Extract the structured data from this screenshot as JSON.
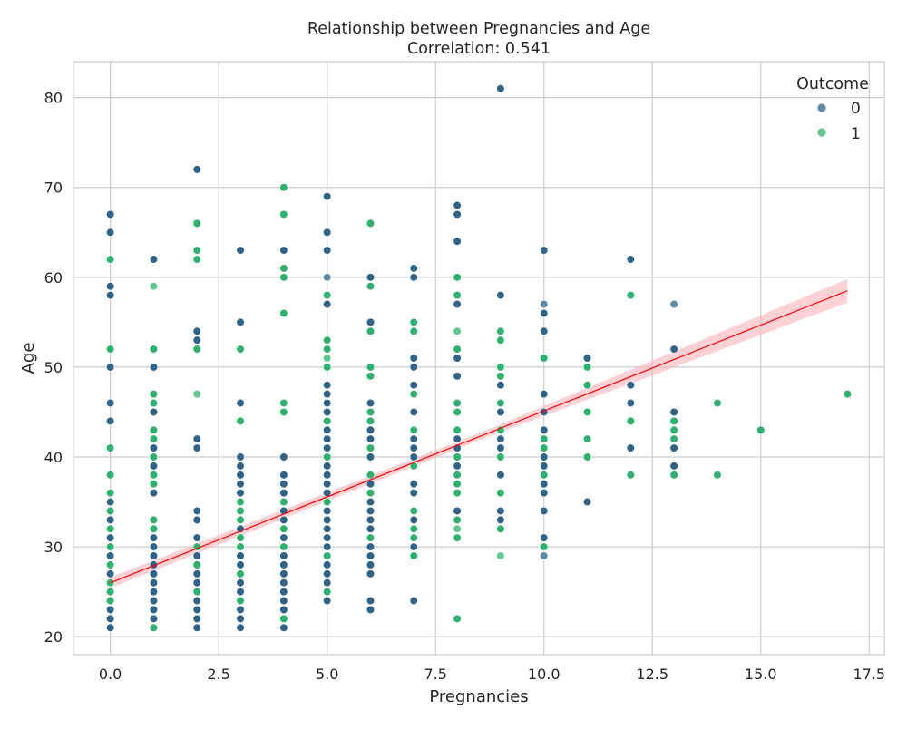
{
  "chart_data": {
    "type": "scatter",
    "title": "Relationship between Pregnancies and Age",
    "subtitle": "Correlation: 0.541",
    "xlabel": "Pregnancies",
    "ylabel": "Age",
    "xlim": [
      -0.85,
      17.85
    ],
    "ylim": [
      18,
      84
    ],
    "xticks": [
      0.0,
      2.5,
      5.0,
      7.5,
      10.0,
      12.5,
      15.0,
      17.5
    ],
    "xtick_labels": [
      "0.0",
      "2.5",
      "5.0",
      "7.5",
      "10.0",
      "12.5",
      "15.0",
      "17.5"
    ],
    "yticks": [
      20,
      30,
      40,
      50,
      60,
      70,
      80
    ],
    "ytick_labels": [
      "20",
      "30",
      "40",
      "50",
      "60",
      "70",
      "80"
    ],
    "grid": true,
    "legend": {
      "title": "Outcome",
      "placement": "top-right",
      "entries": [
        {
          "label": "0",
          "color": "#2f6389"
        },
        {
          "label": "1",
          "color": "#2db26e"
        }
      ]
    },
    "regression": {
      "color": "#ff0000",
      "band_color": "#ffb3b8",
      "start": [
        0,
        26.0
      ],
      "end": [
        17,
        58.5
      ],
      "ci_halfwidth_start": 0.6,
      "ci_halfwidth_mid": 0.4,
      "ci_halfwidth_end": 1.3
    },
    "series": [
      {
        "name": "0",
        "color": "#2f6389",
        "points": [
          [
            0,
            21
          ],
          [
            0,
            22
          ],
          [
            0,
            23
          ],
          [
            0,
            25
          ],
          [
            0,
            26
          ],
          [
            0,
            27
          ],
          [
            0,
            29
          ],
          [
            0,
            31
          ],
          [
            0,
            33
          ],
          [
            0,
            35
          ],
          [
            0,
            44
          ],
          [
            0,
            46
          ],
          [
            0,
            50
          ],
          [
            0,
            58
          ],
          [
            0,
            59
          ],
          [
            0,
            65
          ],
          [
            0,
            67
          ],
          [
            1,
            21
          ],
          [
            1,
            22
          ],
          [
            1,
            23
          ],
          [
            1,
            24
          ],
          [
            1,
            25
          ],
          [
            1,
            26
          ],
          [
            1,
            27
          ],
          [
            1,
            28
          ],
          [
            1,
            29
          ],
          [
            1,
            30
          ],
          [
            1,
            31
          ],
          [
            1,
            32
          ],
          [
            1,
            36
          ],
          [
            1,
            39
          ],
          [
            1,
            41
          ],
          [
            1,
            45
          ],
          [
            1,
            50
          ],
          [
            1,
            62
          ],
          [
            2,
            21
          ],
          [
            2,
            22
          ],
          [
            2,
            23
          ],
          [
            2,
            24
          ],
          [
            2,
            25
          ],
          [
            2,
            26
          ],
          [
            2,
            27
          ],
          [
            2,
            28
          ],
          [
            2,
            29
          ],
          [
            2,
            31
          ],
          [
            2,
            33
          ],
          [
            2,
            34
          ],
          [
            2,
            41
          ],
          [
            2,
            42
          ],
          [
            2,
            53
          ],
          [
            2,
            54
          ],
          [
            2,
            72
          ],
          [
            3,
            21
          ],
          [
            3,
            22
          ],
          [
            3,
            23
          ],
          [
            3,
            25
          ],
          [
            3,
            26
          ],
          [
            3,
            28
          ],
          [
            3,
            29
          ],
          [
            3,
            30
          ],
          [
            3,
            32
          ],
          [
            3,
            36
          ],
          [
            3,
            37
          ],
          [
            3,
            38
          ],
          [
            3,
            39
          ],
          [
            3,
            40
          ],
          [
            3,
            46
          ],
          [
            3,
            55
          ],
          [
            3,
            63
          ],
          [
            4,
            21
          ],
          [
            4,
            22
          ],
          [
            4,
            23
          ],
          [
            4,
            24
          ],
          [
            4,
            25
          ],
          [
            4,
            26
          ],
          [
            4,
            27
          ],
          [
            4,
            28
          ],
          [
            4,
            29
          ],
          [
            4,
            30
          ],
          [
            4,
            31
          ],
          [
            4,
            33
          ],
          [
            4,
            34
          ],
          [
            4,
            36
          ],
          [
            4,
            37
          ],
          [
            4,
            38
          ],
          [
            4,
            40
          ],
          [
            4,
            63
          ],
          [
            5,
            24
          ],
          [
            5,
            26
          ],
          [
            5,
            27
          ],
          [
            5,
            28
          ],
          [
            5,
            30
          ],
          [
            5,
            31
          ],
          [
            5,
            32
          ],
          [
            5,
            33
          ],
          [
            5,
            34
          ],
          [
            5,
            36
          ],
          [
            5,
            37
          ],
          [
            5,
            38
          ],
          [
            5,
            39
          ],
          [
            5,
            41
          ],
          [
            5,
            42
          ],
          [
            5,
            43
          ],
          [
            5,
            45
          ],
          [
            5,
            46
          ],
          [
            5,
            47
          ],
          [
            5,
            48
          ],
          [
            5,
            57
          ],
          [
            5,
            63
          ],
          [
            5,
            65
          ],
          [
            5,
            69
          ],
          [
            6,
            23
          ],
          [
            6,
            24
          ],
          [
            6,
            27
          ],
          [
            6,
            28
          ],
          [
            6,
            29
          ],
          [
            6,
            30
          ],
          [
            6,
            32
          ],
          [
            6,
            33
          ],
          [
            6,
            34
          ],
          [
            6,
            35
          ],
          [
            6,
            36
          ],
          [
            6,
            37
          ],
          [
            6,
            40
          ],
          [
            6,
            42
          ],
          [
            6,
            43
          ],
          [
            6,
            46
          ],
          [
            6,
            55
          ],
          [
            6,
            60
          ],
          [
            7,
            24
          ],
          [
            7,
            30
          ],
          [
            7,
            33
          ],
          [
            7,
            36
          ],
          [
            7,
            37
          ],
          [
            7,
            39
          ],
          [
            7,
            40
          ],
          [
            7,
            41
          ],
          [
            7,
            42
          ],
          [
            7,
            45
          ],
          [
            7,
            48
          ],
          [
            7,
            50
          ],
          [
            7,
            51
          ],
          [
            7,
            60
          ],
          [
            7,
            61
          ],
          [
            8,
            31
          ],
          [
            8,
            34
          ],
          [
            8,
            39
          ],
          [
            8,
            41
          ],
          [
            8,
            42
          ],
          [
            8,
            49
          ],
          [
            8,
            51
          ],
          [
            8,
            57
          ],
          [
            8,
            64
          ],
          [
            8,
            67
          ],
          [
            8,
            68
          ],
          [
            9,
            33
          ],
          [
            9,
            34
          ],
          [
            9,
            38
          ],
          [
            9,
            41
          ],
          [
            9,
            42
          ],
          [
            9,
            45
          ],
          [
            9,
            48
          ],
          [
            9,
            58
          ],
          [
            9,
            81
          ],
          [
            10,
            31
          ],
          [
            10,
            34
          ],
          [
            10,
            36
          ],
          [
            10,
            37
          ],
          [
            10,
            39
          ],
          [
            10,
            40
          ],
          [
            10,
            43
          ],
          [
            10,
            45
          ],
          [
            10,
            47
          ],
          [
            10,
            54
          ],
          [
            10,
            56
          ],
          [
            10,
            63
          ],
          [
            11,
            35
          ],
          [
            11,
            51
          ],
          [
            12,
            41
          ],
          [
            12,
            46
          ],
          [
            12,
            48
          ],
          [
            12,
            62
          ],
          [
            13,
            39
          ],
          [
            13,
            41
          ],
          [
            13,
            45
          ],
          [
            13,
            52
          ]
        ]
      },
      {
        "name": "1",
        "color": "#2db26e",
        "points": [
          [
            0,
            24
          ],
          [
            0,
            25
          ],
          [
            0,
            26
          ],
          [
            0,
            28
          ],
          [
            0,
            30
          ],
          [
            0,
            32
          ],
          [
            0,
            34
          ],
          [
            0,
            36
          ],
          [
            0,
            38
          ],
          [
            0,
            41
          ],
          [
            0,
            52
          ],
          [
            0,
            62
          ],
          [
            1,
            21
          ],
          [
            1,
            32
          ],
          [
            1,
            33
          ],
          [
            1,
            37
          ],
          [
            1,
            38
          ],
          [
            1,
            40
          ],
          [
            1,
            42
          ],
          [
            1,
            43
          ],
          [
            1,
            46
          ],
          [
            1,
            47
          ],
          [
            1,
            52
          ],
          [
            2,
            25
          ],
          [
            2,
            28
          ],
          [
            2,
            30
          ],
          [
            2,
            52
          ],
          [
            2,
            62
          ],
          [
            2,
            63
          ],
          [
            2,
            66
          ],
          [
            3,
            24
          ],
          [
            3,
            27
          ],
          [
            3,
            30
          ],
          [
            3,
            31
          ],
          [
            3,
            33
          ],
          [
            3,
            34
          ],
          [
            3,
            35
          ],
          [
            3,
            44
          ],
          [
            3,
            52
          ],
          [
            4,
            22
          ],
          [
            4,
            30
          ],
          [
            4,
            32
          ],
          [
            4,
            35
          ],
          [
            4,
            45
          ],
          [
            4,
            46
          ],
          [
            4,
            56
          ],
          [
            4,
            60
          ],
          [
            4,
            61
          ],
          [
            4,
            67
          ],
          [
            4,
            70
          ],
          [
            5,
            25
          ],
          [
            5,
            29
          ],
          [
            5,
            35
          ],
          [
            5,
            40
          ],
          [
            5,
            44
          ],
          [
            5,
            50
          ],
          [
            5,
            52
          ],
          [
            5,
            53
          ],
          [
            5,
            58
          ],
          [
            6,
            31
          ],
          [
            6,
            36
          ],
          [
            6,
            38
          ],
          [
            6,
            41
          ],
          [
            6,
            44
          ],
          [
            6,
            45
          ],
          [
            6,
            49
          ],
          [
            6,
            50
          ],
          [
            6,
            54
          ],
          [
            6,
            59
          ],
          [
            6,
            66
          ],
          [
            7,
            29
          ],
          [
            7,
            31
          ],
          [
            7,
            32
          ],
          [
            7,
            34
          ],
          [
            7,
            39
          ],
          [
            7,
            43
          ],
          [
            7,
            47
          ],
          [
            7,
            54
          ],
          [
            7,
            55
          ],
          [
            8,
            22
          ],
          [
            8,
            31
          ],
          [
            8,
            33
          ],
          [
            8,
            36
          ],
          [
            8,
            37
          ],
          [
            8,
            38
          ],
          [
            8,
            40
          ],
          [
            8,
            43
          ],
          [
            8,
            45
          ],
          [
            8,
            46
          ],
          [
            8,
            52
          ],
          [
            8,
            58
          ],
          [
            8,
            60
          ],
          [
            9,
            32
          ],
          [
            9,
            36
          ],
          [
            9,
            40
          ],
          [
            9,
            43
          ],
          [
            9,
            46
          ],
          [
            9,
            49
          ],
          [
            9,
            50
          ],
          [
            9,
            53
          ],
          [
            9,
            54
          ],
          [
            10,
            30
          ],
          [
            10,
            38
          ],
          [
            10,
            41
          ],
          [
            10,
            42
          ],
          [
            10,
            51
          ],
          [
            11,
            40
          ],
          [
            11,
            42
          ],
          [
            11,
            45
          ],
          [
            11,
            48
          ],
          [
            11,
            50
          ],
          [
            12,
            38
          ],
          [
            12,
            44
          ],
          [
            12,
            58
          ],
          [
            13,
            38
          ],
          [
            13,
            42
          ],
          [
            13,
            43
          ],
          [
            13,
            44
          ],
          [
            14,
            38
          ],
          [
            14,
            46
          ],
          [
            15,
            43
          ],
          [
            17,
            47
          ]
        ]
      },
      {
        "name": "0",
        "color": "#5f89a8",
        "points": [
          [
            5,
            60
          ],
          [
            10,
            29
          ],
          [
            10,
            57
          ],
          [
            13,
            57
          ]
        ]
      },
      {
        "name": "1",
        "color": "#5fc98e",
        "points": [
          [
            1,
            59
          ],
          [
            2,
            47
          ],
          [
            5,
            51
          ],
          [
            8,
            32
          ],
          [
            8,
            54
          ],
          [
            9,
            29
          ]
        ]
      }
    ]
  }
}
